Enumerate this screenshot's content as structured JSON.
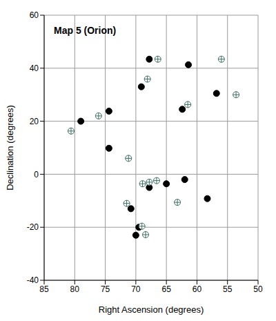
{
  "chart_data": {
    "type": "scatter",
    "title": "Map 5 (Orion)",
    "x_label": "Right Ascension (degrees)",
    "y_label": "Declination (degrees)",
    "xlim": [
      85,
      50
    ],
    "xticks": [
      85,
      80,
      75,
      70,
      65,
      60,
      55,
      50
    ],
    "ylim": [
      -40,
      60
    ],
    "yticks": [
      -40,
      -20,
      0,
      20,
      40,
      60
    ],
    "grid": true,
    "series": [
      {
        "color": "#000000",
        "marker": "filled-circle",
        "x": [
          67.8,
          61.4,
          69.1,
          56.8,
          62.4,
          74.4,
          79.0,
          74.4,
          62.0,
          65.0,
          67.8,
          58.3,
          70.8,
          69.5,
          70.0
        ],
        "values": [
          43.4,
          41.3,
          33.0,
          30.5,
          24.5,
          23.8,
          20.0,
          9.8,
          -2.0,
          -3.6,
          -5.0,
          -9.2,
          -13.0,
          -20.0,
          -23.0
        ]
      },
      {
        "color": "#3d6b63",
        "marker": "circle-plus",
        "x": [
          66.4,
          56.0,
          68.1,
          53.6,
          61.5,
          76.1,
          80.6,
          71.2,
          68.9,
          67.8,
          66.6,
          71.5,
          63.2,
          69.0,
          68.4
        ],
        "values": [
          43.4,
          43.4,
          35.9,
          30.0,
          26.3,
          22.0,
          16.3,
          6.0,
          -3.6,
          -3.0,
          -2.4,
          -11.0,
          -10.6,
          -19.6,
          -22.8
        ]
      }
    ]
  }
}
